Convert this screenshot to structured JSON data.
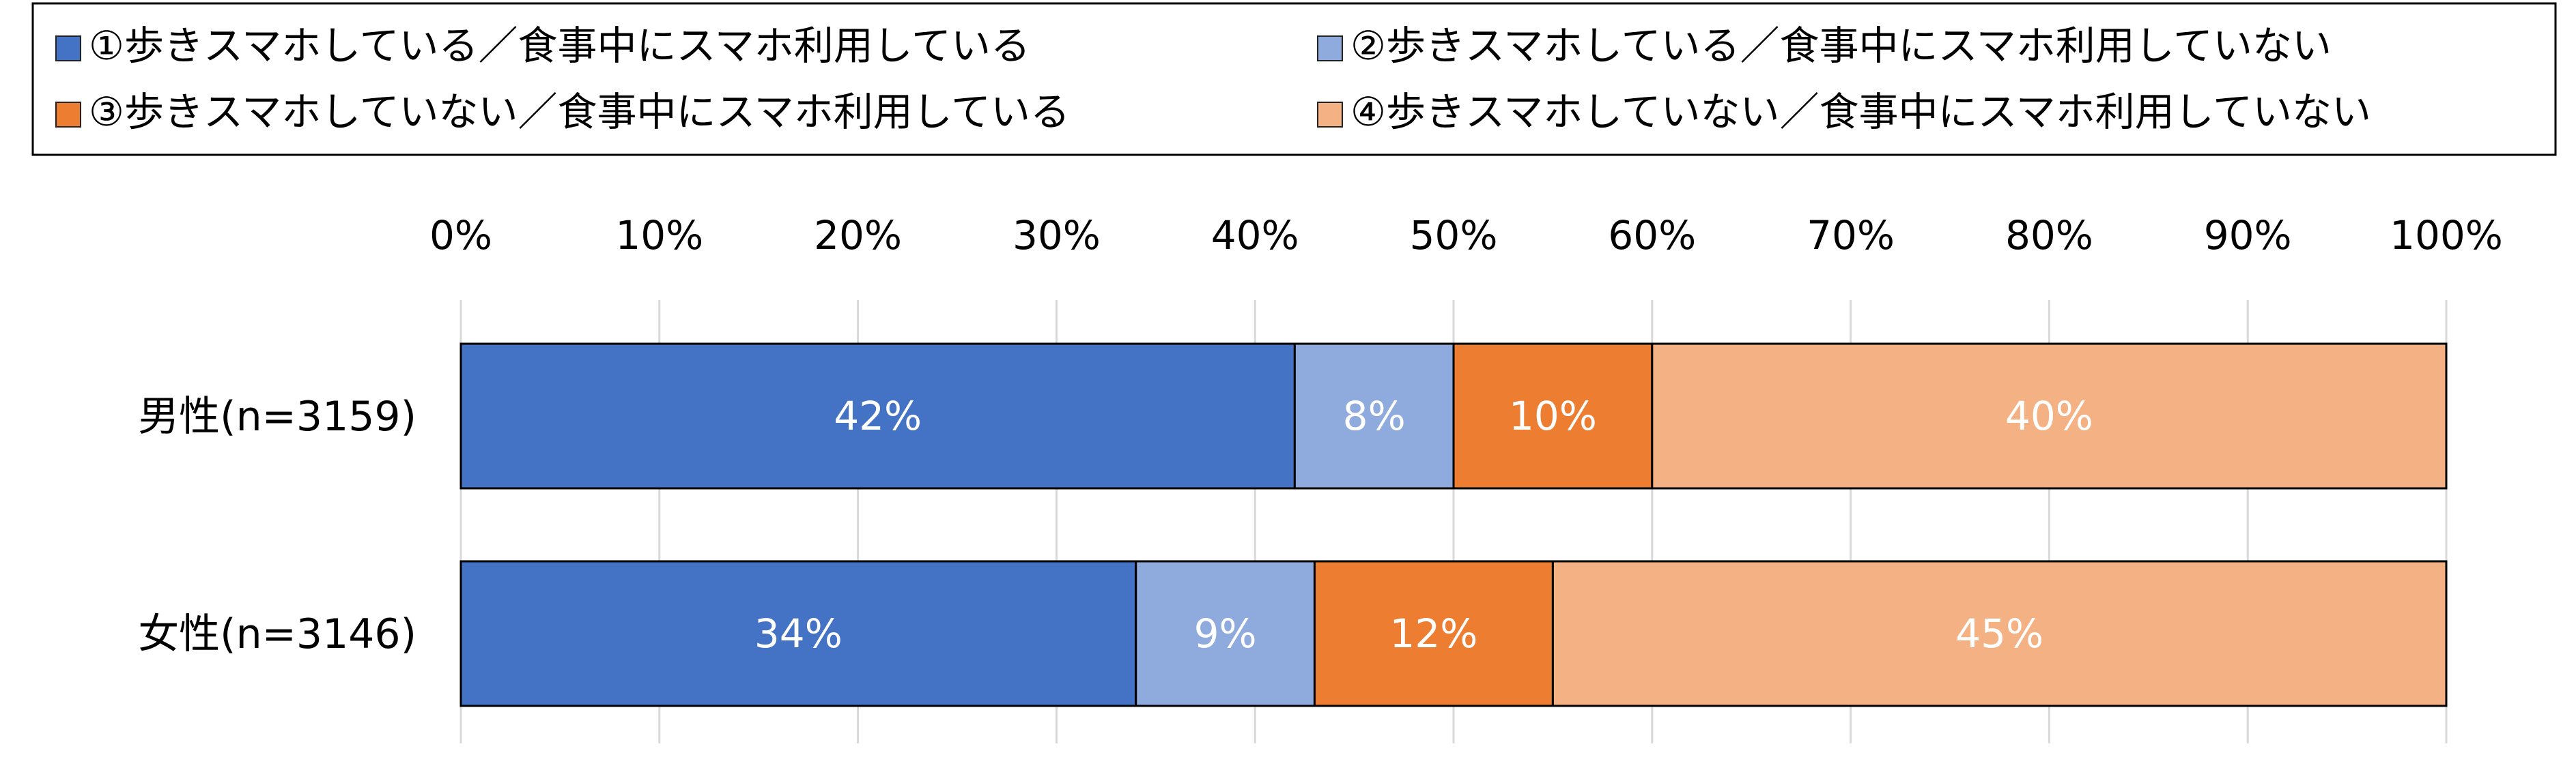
{
  "chart_data": {
    "type": "bar",
    "orientation": "horizontal",
    "stacked": true,
    "normalized": true,
    "title": "",
    "xlabel": "",
    "ylabel": "",
    "xlim": [
      0,
      100
    ],
    "x_ticks": [
      "0%",
      "10%",
      "20%",
      "30%",
      "40%",
      "50%",
      "60%",
      "70%",
      "80%",
      "90%",
      "100%"
    ],
    "grid": true,
    "legend_position": "top",
    "categories": [
      "男性(n=3159)",
      "女性(n=3146)"
    ],
    "series": [
      {
        "name": "①歩きスマホしている／食事中にスマホ利用している",
        "color": "#4472C4",
        "values": [
          42,
          34
        ],
        "labels": [
          "42%",
          "34%"
        ]
      },
      {
        "name": "②歩きスマホしている／食事中にスマホ利用していない",
        "color": "#8FAADC",
        "values": [
          8,
          9
        ],
        "labels": [
          "8%",
          "9%"
        ]
      },
      {
        "name": "③歩きスマホしていない／食事中にスマホ利用している",
        "color": "#ED7D31",
        "values": [
          10,
          12
        ],
        "labels": [
          "10%",
          "12%"
        ]
      },
      {
        "name": "④歩きスマホしていない／食事中にスマホ利用していない",
        "color": "#F4B183",
        "values": [
          40,
          45
        ],
        "labels": [
          "40%",
          "45%"
        ]
      }
    ]
  }
}
